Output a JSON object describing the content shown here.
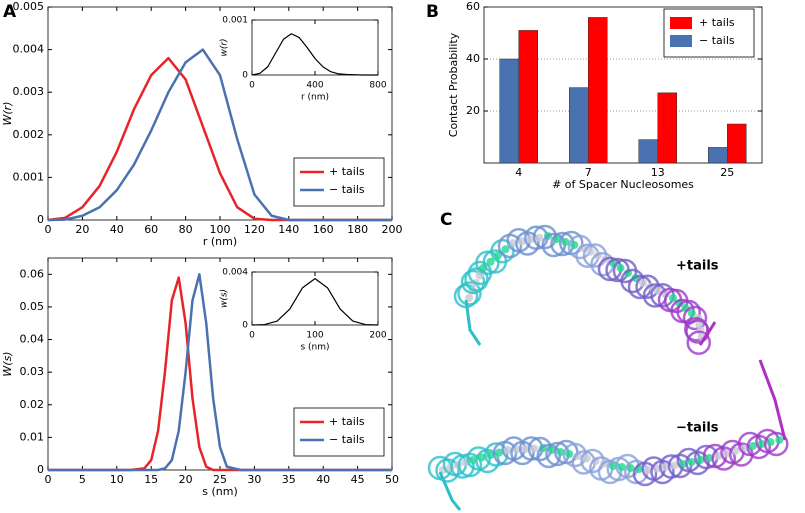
{
  "panel_labels": [
    "A",
    "B",
    "C"
  ],
  "structure_labels": [
    "+tails",
    "−tails"
  ],
  "chart_data": [
    {
      "type": "line",
      "xlabel": "r (nm)",
      "ylabel": "W(r)",
      "x": [
        0,
        10,
        20,
        30,
        40,
        50,
        60,
        70,
        80,
        90,
        100,
        110,
        120,
        130,
        140,
        200
      ],
      "series": [
        {
          "name": "+ tails",
          "color": "#e8242a",
          "values": [
            0,
            5e-05,
            0.0003,
            0.0008,
            0.0016,
            0.0026,
            0.0034,
            0.0038,
            0.0033,
            0.0022,
            0.0011,
            0.0003,
            3e-05,
            0,
            0,
            0
          ]
        },
        {
          "name": "− tails",
          "color": "#4a72b0",
          "values": [
            0,
            1e-05,
            0.0001,
            0.0003,
            0.0007,
            0.0013,
            0.0021,
            0.003,
            0.0037,
            0.004,
            0.0034,
            0.0019,
            0.0006,
            0.0001,
            0,
            0
          ]
        }
      ],
      "xlim": [
        0,
        200
      ],
      "xticks": [
        0,
        20,
        40,
        60,
        80,
        100,
        120,
        140,
        160,
        180,
        200
      ],
      "ylim": [
        0,
        0.005
      ],
      "yticks": [
        0,
        0.001,
        0.002,
        0.003,
        0.004,
        0.005
      ],
      "legend": "lower right"
    },
    {
      "type": "line",
      "xlabel": "r (nm)",
      "ylabel": "w(r)",
      "x": [
        0,
        50,
        100,
        150,
        200,
        250,
        300,
        350,
        400,
        450,
        500,
        550,
        600,
        700,
        800
      ],
      "values": [
        0,
        3e-05,
        0.00015,
        0.0004,
        0.00065,
        0.00075,
        0.00068,
        0.0005,
        0.0003,
        0.00015,
        6e-05,
        2e-05,
        1e-05,
        0,
        0
      ],
      "color": "#000000",
      "xlim": [
        0,
        800
      ],
      "xticks": [
        0,
        400,
        800
      ],
      "ylim": [
        0,
        0.001
      ],
      "yticks": [
        0,
        0.001
      ]
    },
    {
      "type": "line",
      "xlabel": "s (nm)",
      "ylabel": "W(s)",
      "x": [
        0,
        12,
        14,
        15,
        16,
        17,
        18,
        19,
        20,
        21,
        22,
        23,
        24,
        25,
        26,
        28,
        50
      ],
      "series": [
        {
          "name": "+ tails",
          "color": "#e8242a",
          "values": [
            0,
            0,
            0.0005,
            0.003,
            0.012,
            0.03,
            0.052,
            0.059,
            0.045,
            0.022,
            0.007,
            0.001,
            0,
            0,
            0,
            0,
            0
          ]
        },
        {
          "name": "− tails",
          "color": "#4a72b0",
          "values": [
            0,
            0,
            0,
            0,
            0,
            0.0005,
            0.003,
            0.012,
            0.03,
            0.052,
            0.06,
            0.045,
            0.022,
            0.007,
            0.001,
            0,
            0
          ]
        }
      ],
      "xlim": [
        0,
        50
      ],
      "xticks": [
        0,
        5,
        10,
        15,
        20,
        25,
        30,
        35,
        40,
        45,
        50
      ],
      "ylim": [
        0,
        0.065
      ],
      "yticks": [
        0,
        0.01,
        0.02,
        0.03,
        0.04,
        0.05,
        0.06
      ],
      "legend": "lower right"
    },
    {
      "type": "line",
      "xlabel": "s (nm)",
      "ylabel": "w(s)",
      "x": [
        0,
        20,
        40,
        60,
        80,
        100,
        120,
        140,
        160,
        180,
        200
      ],
      "values": [
        0,
        3e-05,
        0.0003,
        0.0012,
        0.0028,
        0.0035,
        0.0028,
        0.0012,
        0.0003,
        3e-05,
        0
      ],
      "color": "#000000",
      "xlim": [
        0,
        200
      ],
      "xticks": [
        0,
        100,
        200
      ],
      "ylim": [
        0,
        0.004
      ],
      "yticks": [
        0,
        0.004
      ]
    },
    {
      "type": "bar",
      "xlabel": "# of Spacer Nucleosomes",
      "ylabel": "Contact Probability",
      "categories": [
        "4",
        "7",
        "13",
        "25"
      ],
      "series": [
        {
          "name": "+ tails",
          "color": "#ff0000",
          "values": [
            51,
            56,
            27,
            15
          ]
        },
        {
          "name": "− tails",
          "color": "#4a72b0",
          "values": [
            40,
            29,
            9,
            6
          ]
        }
      ],
      "ylim": [
        0,
        60
      ],
      "yticks": [
        20,
        40,
        60
      ],
      "grid": true,
      "legend": "upper right"
    }
  ]
}
